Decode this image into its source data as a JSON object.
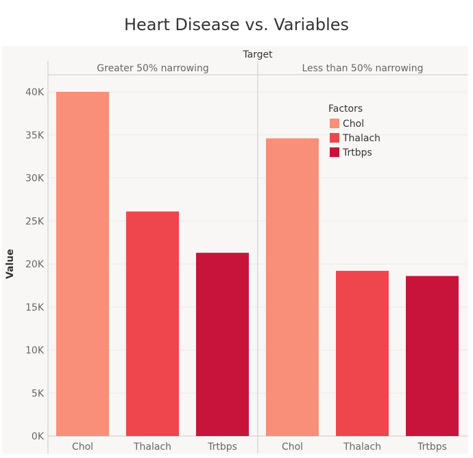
{
  "chart_data": {
    "type": "bar",
    "title": "Heart Disease vs. Variables",
    "column_header": "Target",
    "ylabel": "Value",
    "ylim": [
      0,
      40000
    ],
    "y_ticks": [
      {
        "value": 0,
        "label": "0K"
      },
      {
        "value": 5000,
        "label": "5K"
      },
      {
        "value": 10000,
        "label": "10K"
      },
      {
        "value": 15000,
        "label": "15K"
      },
      {
        "value": 20000,
        "label": "20K"
      },
      {
        "value": 25000,
        "label": "25K"
      },
      {
        "value": 30000,
        "label": "30K"
      },
      {
        "value": 35000,
        "label": "35K"
      },
      {
        "value": 40000,
        "label": "40K"
      }
    ],
    "categories": [
      "Chol",
      "Thalach",
      "Trtbps"
    ],
    "panels": [
      {
        "name": "Greater 50% narrowing",
        "values": [
          40000,
          26100,
          21300
        ]
      },
      {
        "name": "Less than 50% narrowing",
        "values": [
          34600,
          19200,
          18600
        ]
      }
    ],
    "legend": {
      "title": "Factors",
      "position": "top-right-inside",
      "items": [
        {
          "label": "Chol",
          "color": "#F98F78"
        },
        {
          "label": "Thalach",
          "color": "#EF464D"
        },
        {
          "label": "Trtbps",
          "color": "#C8143A"
        }
      ]
    },
    "grid": true,
    "background_color": "#F8F7F6"
  }
}
